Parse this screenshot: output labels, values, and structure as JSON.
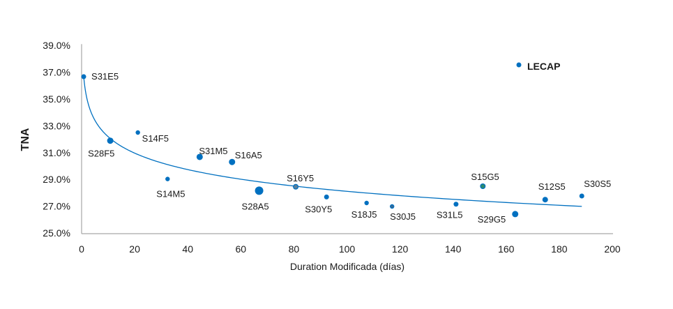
{
  "chart_data": {
    "type": "scatter",
    "title": "",
    "xlabel": "Duration  Modificada (días)",
    "ylabel": "TNA",
    "xlim": [
      0,
      200
    ],
    "ylim": [
      25,
      39
    ],
    "x_ticks": [
      0,
      20,
      40,
      60,
      80,
      100,
      120,
      140,
      160,
      180,
      200
    ],
    "x_tick_labels": [
      "0",
      "20",
      "40",
      "60",
      "80",
      "100",
      "120",
      "140",
      "160",
      "180",
      "200"
    ],
    "y_ticks": [
      25,
      27,
      29,
      31,
      33,
      35,
      37,
      39
    ],
    "y_tick_labels": [
      "25.0%",
      "27.0%",
      "29.0%",
      "31.0%",
      "33.0%",
      "35.0%",
      "37.0%",
      "39.0%"
    ],
    "grid": false,
    "legend": {
      "position": "top-right",
      "entries": [
        {
          "label": "LECAP",
          "color": "#0070c0"
        }
      ]
    },
    "series": [
      {
        "name": "LECAP",
        "color": "#0070c0",
        "points": [
          {
            "label": "S31E5",
            "x": 0.8,
            "y": 36.67
          },
          {
            "label": "S28F5",
            "x": 10.8,
            "y": 31.89
          },
          {
            "label": "S14F5",
            "x": 21.2,
            "y": 32.5
          },
          {
            "label": "S14M5",
            "x": 32.4,
            "y": 29.03
          },
          {
            "label": "S31M5",
            "x": 44.5,
            "y": 30.68
          },
          {
            "label": "S16A5",
            "x": 56.7,
            "y": 30.3
          },
          {
            "label": "S28A5",
            "x": 66.9,
            "y": 28.16
          },
          {
            "label": "S16Y5",
            "x": 80.7,
            "y": 28.45
          },
          {
            "label": "S30Y5",
            "x": 92.3,
            "y": 27.69
          },
          {
            "label": "S18J5",
            "x": 107.4,
            "y": 27.24
          },
          {
            "label": "S30J5",
            "x": 117.0,
            "y": 26.98
          },
          {
            "label": "S31L5",
            "x": 141.1,
            "y": 27.15
          },
          {
            "label": "S15G5",
            "x": 151.2,
            "y": 28.49
          },
          {
            "label": "S29G5",
            "x": 163.4,
            "y": 26.41
          },
          {
            "label": "S12S5",
            "x": 174.7,
            "y": 27.49
          },
          {
            "label": "S30S5",
            "x": 188.5,
            "y": 27.76
          }
        ]
      }
    ],
    "trendline": {
      "type": "logarithmic",
      "a": 36.27,
      "b": -1.772,
      "x_range": [
        0.8,
        188.5
      ],
      "color": "#0070c0"
    }
  }
}
